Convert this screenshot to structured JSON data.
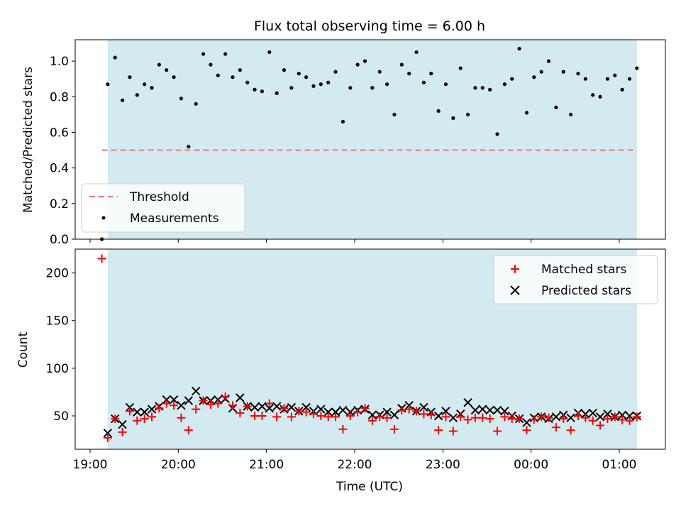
{
  "chart_data": [
    {
      "type": "scatter",
      "title": "Flux total observing time = 6.00 h",
      "ylabel": "Matched/Predicted stars",
      "xlabel": "",
      "ylim": [
        0,
        1.12
      ],
      "yticks": [
        0.0,
        0.2,
        0.4,
        0.6,
        0.8,
        1.0
      ],
      "ytick_labels": [
        "0.0",
        "0.2",
        "0.4",
        "0.6",
        "0.8",
        "1.0"
      ],
      "shaded_span": {
        "start": "19:12",
        "end": "01:12",
        "color": "#d3eaf0"
      },
      "threshold": {
        "name": "Threshold",
        "value": 0.5,
        "color": "#f07878",
        "style": "dashed",
        "start": "19:08",
        "end": "01:12"
      },
      "legend": {
        "position": "lower-left",
        "entries": [
          "Threshold",
          "Measurements"
        ]
      },
      "series": [
        {
          "name": "Measurements",
          "color": "#000000",
          "marker": "dot",
          "x": [
            "19:08",
            "19:12",
            "19:17",
            "19:22",
            "19:27",
            "19:32",
            "19:37",
            "19:42",
            "19:47",
            "19:52",
            "19:57",
            "20:02",
            "20:07",
            "20:12",
            "20:17",
            "20:22",
            "20:27",
            "20:32",
            "20:37",
            "20:42",
            "20:47",
            "20:52",
            "20:57",
            "21:02",
            "21:07",
            "21:12",
            "21:17",
            "21:22",
            "21:27",
            "21:32",
            "21:37",
            "21:42",
            "21:47",
            "21:52",
            "21:57",
            "22:02",
            "22:07",
            "22:12",
            "22:17",
            "22:22",
            "22:27",
            "22:32",
            "22:37",
            "22:42",
            "22:47",
            "22:52",
            "22:57",
            "23:02",
            "23:07",
            "23:12",
            "23:17",
            "23:22",
            "23:27",
            "23:32",
            "23:37",
            "23:42",
            "23:47",
            "23:52",
            "23:57",
            "00:02",
            "00:07",
            "00:12",
            "00:17",
            "00:22",
            "00:27",
            "00:32",
            "00:37",
            "00:42",
            "00:47",
            "00:52",
            "00:57",
            "01:02",
            "01:07",
            "01:12"
          ],
          "values": [
            0.0,
            0.87,
            1.02,
            0.78,
            0.91,
            0.81,
            0.87,
            0.85,
            0.98,
            0.95,
            0.91,
            0.79,
            0.52,
            0.76,
            1.04,
            0.98,
            0.92,
            1.04,
            0.91,
            0.95,
            0.88,
            0.84,
            0.83,
            1.05,
            0.82,
            0.95,
            0.85,
            0.93,
            0.91,
            0.86,
            0.87,
            0.88,
            0.94,
            0.66,
            0.85,
            0.98,
            1.0,
            0.85,
            0.94,
            0.87,
            0.7,
            0.98,
            0.93,
            1.05,
            0.88,
            0.93,
            0.72,
            0.87,
            0.68,
            0.96,
            0.7,
            0.85,
            0.85,
            0.84,
            0.59,
            0.87,
            0.9,
            1.07,
            0.71,
            0.91,
            0.94,
            1.0,
            0.74,
            0.94,
            0.7,
            0.93,
            0.9,
            0.81,
            0.8,
            0.9,
            0.92,
            0.84,
            0.9,
            0.96
          ]
        }
      ]
    },
    {
      "type": "scatter",
      "title": "",
      "xlabel": "Time (UTC)",
      "ylabel": "Count",
      "ylim": [
        15,
        225
      ],
      "yticks": [
        50,
        100,
        150,
        200
      ],
      "ytick_labels": [
        "50",
        "100",
        "150",
        "200"
      ],
      "xticks": [
        "19:00",
        "20:00",
        "21:00",
        "22:00",
        "23:00",
        "00:00",
        "01:00"
      ],
      "shaded_span": {
        "start": "19:12",
        "end": "01:12",
        "color": "#d3eaf0"
      },
      "legend": {
        "position": "top-right",
        "entries": [
          "Matched stars",
          "Predicted stars"
        ]
      },
      "series": [
        {
          "name": "Matched stars",
          "color": "#ff0000",
          "marker": "plus",
          "x": [
            "19:08",
            "19:12",
            "19:17",
            "19:22",
            "19:27",
            "19:32",
            "19:37",
            "19:42",
            "19:47",
            "19:52",
            "19:57",
            "20:02",
            "20:07",
            "20:12",
            "20:17",
            "20:22",
            "20:27",
            "20:32",
            "20:37",
            "20:42",
            "20:47",
            "20:52",
            "20:57",
            "21:02",
            "21:07",
            "21:12",
            "21:17",
            "21:22",
            "21:27",
            "21:32",
            "21:37",
            "21:42",
            "21:47",
            "21:52",
            "21:57",
            "22:02",
            "22:07",
            "22:12",
            "22:17",
            "22:22",
            "22:27",
            "22:32",
            "22:37",
            "22:42",
            "22:47",
            "22:52",
            "22:57",
            "23:02",
            "23:07",
            "23:12",
            "23:17",
            "23:22",
            "23:27",
            "23:32",
            "23:37",
            "23:42",
            "23:47",
            "23:52",
            "23:57",
            "00:02",
            "00:07",
            "00:12",
            "00:17",
            "00:22",
            "00:27",
            "00:32",
            "00:37",
            "00:42",
            "00:47",
            "00:52",
            "00:57",
            "01:02",
            "01:07",
            "01:12"
          ],
          "values": [
            215,
            27,
            47,
            33,
            55,
            45,
            47,
            49,
            58,
            63,
            61,
            48,
            35,
            57,
            66,
            62,
            63,
            70,
            61,
            53,
            60,
            50,
            50,
            63,
            49,
            58,
            49,
            55,
            54,
            52,
            50,
            49,
            49,
            36,
            50,
            54,
            58,
            45,
            49,
            48,
            36,
            56,
            57,
            55,
            52,
            51,
            35,
            49,
            34,
            49,
            46,
            48,
            48,
            47,
            34,
            49,
            47,
            47,
            35,
            46,
            49,
            48,
            38,
            47,
            35,
            50,
            48,
            45,
            40,
            47,
            49,
            46,
            45,
            49
          ]
        },
        {
          "name": "Predicted stars",
          "color": "#000000",
          "marker": "x",
          "x": [
            "19:12",
            "19:17",
            "19:22",
            "19:27",
            "19:32",
            "19:37",
            "19:42",
            "19:47",
            "19:52",
            "19:57",
            "20:02",
            "20:07",
            "20:12",
            "20:17",
            "20:22",
            "20:27",
            "20:32",
            "20:37",
            "20:42",
            "20:47",
            "20:52",
            "20:57",
            "21:02",
            "21:07",
            "21:12",
            "21:17",
            "21:22",
            "21:27",
            "21:32",
            "21:37",
            "21:42",
            "21:47",
            "21:52",
            "21:57",
            "22:02",
            "22:07",
            "22:12",
            "22:17",
            "22:22",
            "22:27",
            "22:32",
            "22:37",
            "22:42",
            "22:47",
            "22:52",
            "22:57",
            "23:02",
            "23:07",
            "23:12",
            "23:17",
            "23:22",
            "23:27",
            "23:32",
            "23:37",
            "23:42",
            "23:47",
            "23:52",
            "23:57",
            "00:02",
            "00:07",
            "00:12",
            "00:17",
            "00:22",
            "00:27",
            "00:32",
            "00:37",
            "00:42",
            "00:47",
            "00:52",
            "00:57",
            "01:02",
            "01:07",
            "01:12"
          ],
          "values": [
            32,
            47,
            41,
            59,
            54,
            54,
            57,
            60,
            67,
            67,
            61,
            66,
            76,
            66,
            66,
            67,
            68,
            58,
            69,
            60,
            59,
            60,
            58,
            60,
            57,
            59,
            55,
            59,
            55,
            57,
            54,
            54,
            56,
            54,
            56,
            57,
            51,
            51,
            54,
            51,
            58,
            61,
            55,
            59,
            54,
            50,
            55,
            48,
            52,
            64,
            56,
            57,
            56,
            56,
            55,
            50,
            47,
            43,
            48,
            49,
            47,
            49,
            51,
            48,
            53,
            52,
            53,
            49,
            52,
            49,
            51,
            50,
            50
          ]
        }
      ]
    }
  ]
}
